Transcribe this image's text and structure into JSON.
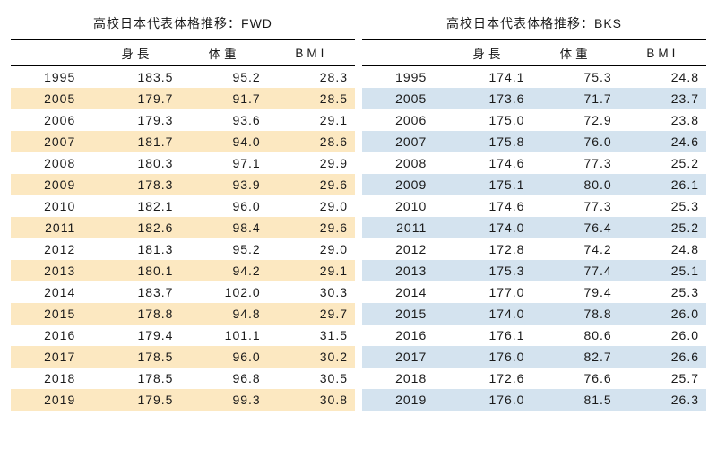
{
  "fwd": {
    "title": "高校日本代表体格推移：FWD",
    "columns": [
      "身長",
      "体重",
      "BMI"
    ],
    "rows": [
      {
        "year": "1995",
        "h": "183.5",
        "w": "95.2",
        "b": "28.3"
      },
      {
        "year": "2005",
        "h": "179.7",
        "w": "91.7",
        "b": "28.5"
      },
      {
        "year": "2006",
        "h": "179.3",
        "w": "93.6",
        "b": "29.1"
      },
      {
        "year": "2007",
        "h": "181.7",
        "w": "94.0",
        "b": "28.6"
      },
      {
        "year": "2008",
        "h": "180.3",
        "w": "97.1",
        "b": "29.9"
      },
      {
        "year": "2009",
        "h": "178.3",
        "w": "93.9",
        "b": "29.6"
      },
      {
        "year": "2010",
        "h": "182.1",
        "w": "96.0",
        "b": "29.0"
      },
      {
        "year": "2011",
        "h": "182.6",
        "w": "98.4",
        "b": "29.6"
      },
      {
        "year": "2012",
        "h": "181.3",
        "w": "95.2",
        "b": "29.0"
      },
      {
        "year": "2013",
        "h": "180.1",
        "w": "94.2",
        "b": "29.1"
      },
      {
        "year": "2014",
        "h": "183.7",
        "w": "102.0",
        "b": "30.3"
      },
      {
        "year": "2015",
        "h": "178.8",
        "w": "94.8",
        "b": "29.7"
      },
      {
        "year": "2016",
        "h": "179.4",
        "w": "101.1",
        "b": "31.5"
      },
      {
        "year": "2017",
        "h": "178.5",
        "w": "96.0",
        "b": "30.2"
      },
      {
        "year": "2018",
        "h": "178.5",
        "w": "96.8",
        "b": "30.5"
      },
      {
        "year": "2019",
        "h": "179.5",
        "w": "99.3",
        "b": "30.8"
      }
    ],
    "stripe_color": "#fce8c1"
  },
  "bks": {
    "title": "高校日本代表体格推移：BKS",
    "columns": [
      "身長",
      "体重",
      "BMI"
    ],
    "rows": [
      {
        "year": "1995",
        "h": "174.1",
        "w": "75.3",
        "b": "24.8"
      },
      {
        "year": "2005",
        "h": "173.6",
        "w": "71.7",
        "b": "23.7"
      },
      {
        "year": "2006",
        "h": "175.0",
        "w": "72.9",
        "b": "23.8"
      },
      {
        "year": "2007",
        "h": "175.8",
        "w": "76.0",
        "b": "24.6"
      },
      {
        "year": "2008",
        "h": "174.6",
        "w": "77.3",
        "b": "25.2"
      },
      {
        "year": "2009",
        "h": "175.1",
        "w": "80.0",
        "b": "26.1"
      },
      {
        "year": "2010",
        "h": "174.6",
        "w": "77.3",
        "b": "25.3"
      },
      {
        "year": "2011",
        "h": "174.0",
        "w": "76.4",
        "b": "25.2"
      },
      {
        "year": "2012",
        "h": "172.8",
        "w": "74.2",
        "b": "24.8"
      },
      {
        "year": "2013",
        "h": "175.3",
        "w": "77.4",
        "b": "25.1"
      },
      {
        "year": "2014",
        "h": "177.0",
        "w": "79.4",
        "b": "25.3"
      },
      {
        "year": "2015",
        "h": "174.0",
        "w": "78.8",
        "b": "26.0"
      },
      {
        "year": "2016",
        "h": "176.1",
        "w": "80.6",
        "b": "26.0"
      },
      {
        "year": "2017",
        "h": "176.0",
        "w": "82.7",
        "b": "26.6"
      },
      {
        "year": "2018",
        "h": "172.6",
        "w": "76.6",
        "b": "25.7"
      },
      {
        "year": "2019",
        "h": "176.0",
        "w": "81.5",
        "b": "26.3"
      }
    ],
    "stripe_color": "#d4e3ef"
  },
  "style": {
    "border_color": "#000000",
    "text_color": "#1a1a1a",
    "background": "#ffffff",
    "body_font": "Century Gothic / Futura style",
    "header_font": "Hiragino / Yu Gothic",
    "font_size_body": 14,
    "font_size_title": 14
  }
}
